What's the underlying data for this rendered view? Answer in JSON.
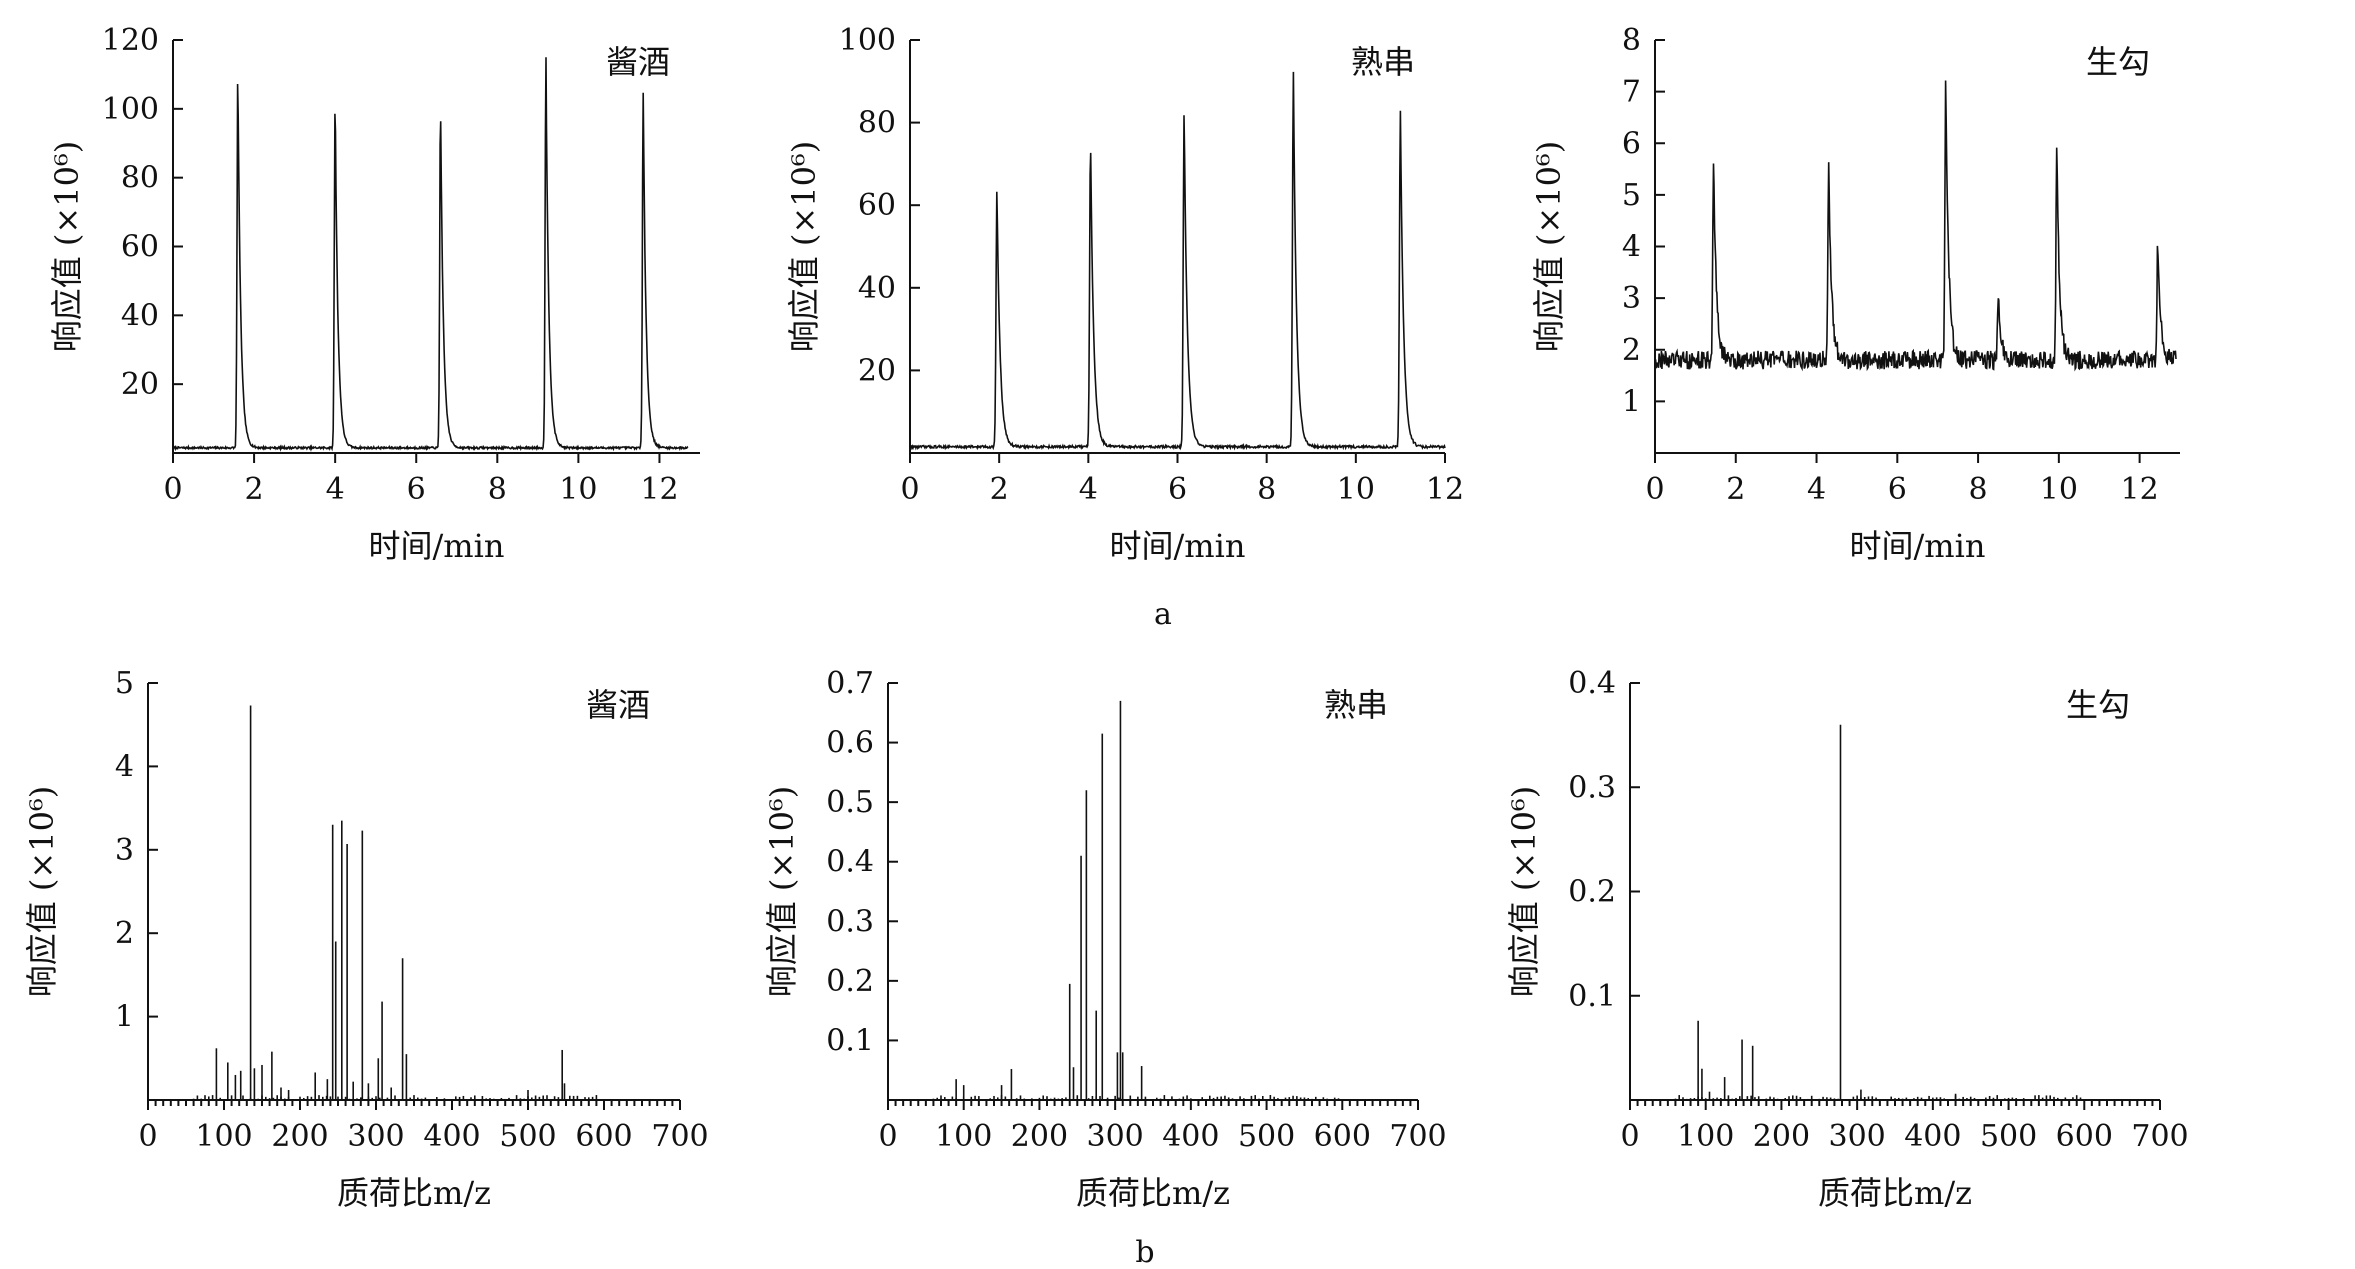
{
  "captions": [
    "a",
    "b"
  ],
  "chart_data": [
    {
      "type": "line",
      "label": "酱酒",
      "xlabel": "时间/min",
      "ylabel": "响应值 (×10⁶)",
      "xlim": [
        0,
        13
      ],
      "ylim": [
        0,
        120
      ],
      "xticks": [
        0,
        2,
        4,
        6,
        8,
        10,
        12
      ],
      "yticks": [
        20,
        40,
        60,
        80,
        100,
        120
      ],
      "x_end": 12.7,
      "baseline": 1.5,
      "noise": 0.3,
      "peaks": [
        {
          "x": 1.6,
          "y": 111
        },
        {
          "x": 4.0,
          "y": 104
        },
        {
          "x": 6.6,
          "y": 102
        },
        {
          "x": 9.2,
          "y": 116
        },
        {
          "x": 11.6,
          "y": 105
        }
      ]
    },
    {
      "type": "line",
      "label": "熟串",
      "xlabel": "时间/min",
      "ylabel": "响应值 (×10⁶)",
      "xlim": [
        0,
        12
      ],
      "ylim": [
        0,
        100
      ],
      "xticks": [
        0,
        2,
        4,
        6,
        8,
        10,
        12
      ],
      "yticks": [
        20,
        40,
        60,
        80,
        100
      ],
      "x_end": 12.0,
      "baseline": 1.5,
      "noise": 0.3,
      "peaks": [
        {
          "x": 1.95,
          "y": 64
        },
        {
          "x": 4.05,
          "y": 76
        },
        {
          "x": 6.15,
          "y": 83
        },
        {
          "x": 8.6,
          "y": 92
        },
        {
          "x": 11.0,
          "y": 83
        }
      ]
    },
    {
      "type": "line",
      "label": "生勾",
      "xlabel": "时间/min",
      "ylabel": "响应值 (×10⁶)",
      "xlim": [
        0,
        13
      ],
      "ylim": [
        0,
        8
      ],
      "xticks": [
        0,
        2,
        4,
        6,
        8,
        10,
        12
      ],
      "yticks": [
        1,
        2,
        3,
        4,
        5,
        6,
        7,
        8
      ],
      "x_end": 12.9,
      "baseline": 1.8,
      "noise": 0.18,
      "peaks": [
        {
          "x": 1.45,
          "y": 5.65
        },
        {
          "x": 4.3,
          "y": 5.6
        },
        {
          "x": 7.2,
          "y": 7.3
        },
        {
          "x": 8.5,
          "y": 3.05
        },
        {
          "x": 9.95,
          "y": 5.8
        },
        {
          "x": 12.45,
          "y": 4.15
        }
      ]
    },
    {
      "type": "bar",
      "label": "酱酒",
      "xlabel": "质荷比m/z",
      "ylabel": "响应值 (×10⁶)",
      "xlim": [
        0,
        700
      ],
      "ylim": [
        0,
        5
      ],
      "xticks": [
        0,
        100,
        200,
        300,
        400,
        500,
        600,
        700
      ],
      "yticks": [
        1,
        2,
        3,
        4,
        5
      ],
      "sticks": [
        {
          "mz": 90,
          "v": 0.62
        },
        {
          "mz": 105,
          "v": 0.45
        },
        {
          "mz": 115,
          "v": 0.3
        },
        {
          "mz": 122,
          "v": 0.35
        },
        {
          "mz": 135,
          "v": 4.73
        },
        {
          "mz": 140,
          "v": 0.38
        },
        {
          "mz": 150,
          "v": 0.42
        },
        {
          "mz": 163,
          "v": 0.58
        },
        {
          "mz": 175,
          "v": 0.15
        },
        {
          "mz": 185,
          "v": 0.12
        },
        {
          "mz": 220,
          "v": 0.33
        },
        {
          "mz": 236,
          "v": 0.25
        },
        {
          "mz": 243,
          "v": 3.3
        },
        {
          "mz": 247,
          "v": 1.9
        },
        {
          "mz": 255,
          "v": 3.35
        },
        {
          "mz": 262,
          "v": 3.07
        },
        {
          "mz": 270,
          "v": 0.22
        },
        {
          "mz": 282,
          "v": 3.23
        },
        {
          "mz": 290,
          "v": 0.2
        },
        {
          "mz": 303,
          "v": 0.5
        },
        {
          "mz": 308,
          "v": 1.18
        },
        {
          "mz": 320,
          "v": 0.15
        },
        {
          "mz": 335,
          "v": 1.7
        },
        {
          "mz": 340,
          "v": 0.55
        },
        {
          "mz": 500,
          "v": 0.12
        },
        {
          "mz": 545,
          "v": 0.6
        },
        {
          "mz": 548,
          "v": 0.2
        }
      ]
    },
    {
      "type": "bar",
      "label": "熟串",
      "xlabel": "质荷比m/z",
      "ylabel": "响应值 (×10⁶)",
      "xlim": [
        0,
        700
      ],
      "ylim": [
        0,
        0.7
      ],
      "xticks": [
        0,
        100,
        200,
        300,
        400,
        500,
        600,
        700
      ],
      "yticks": [
        0.1,
        0.2,
        0.3,
        0.4,
        0.5,
        0.6,
        0.7
      ],
      "sticks": [
        {
          "mz": 90,
          "v": 0.035
        },
        {
          "mz": 100,
          "v": 0.025
        },
        {
          "mz": 150,
          "v": 0.025
        },
        {
          "mz": 163,
          "v": 0.052
        },
        {
          "mz": 240,
          "v": 0.195
        },
        {
          "mz": 245,
          "v": 0.055
        },
        {
          "mz": 255,
          "v": 0.41
        },
        {
          "mz": 262,
          "v": 0.52
        },
        {
          "mz": 275,
          "v": 0.15
        },
        {
          "mz": 283,
          "v": 0.615
        },
        {
          "mz": 303,
          "v": 0.08
        },
        {
          "mz": 307,
          "v": 0.67
        },
        {
          "mz": 310,
          "v": 0.08
        },
        {
          "mz": 335,
          "v": 0.057
        }
      ]
    },
    {
      "type": "bar",
      "label": "生勾",
      "xlabel": "质荷比m/z",
      "ylabel": "响应值 (×10⁶)",
      "xlim": [
        0,
        700
      ],
      "ylim": [
        0,
        0.4
      ],
      "xticks": [
        0,
        100,
        200,
        300,
        400,
        500,
        600,
        700
      ],
      "yticks": [
        0.1,
        0.2,
        0.3,
        0.4
      ],
      "sticks": [
        {
          "mz": 90,
          "v": 0.076
        },
        {
          "mz": 95,
          "v": 0.03
        },
        {
          "mz": 105,
          "v": 0.008
        },
        {
          "mz": 125,
          "v": 0.022
        },
        {
          "mz": 148,
          "v": 0.058
        },
        {
          "mz": 162,
          "v": 0.052
        },
        {
          "mz": 278,
          "v": 0.36
        },
        {
          "mz": 305,
          "v": 0.01
        },
        {
          "mz": 430,
          "v": 0.006
        }
      ]
    }
  ]
}
